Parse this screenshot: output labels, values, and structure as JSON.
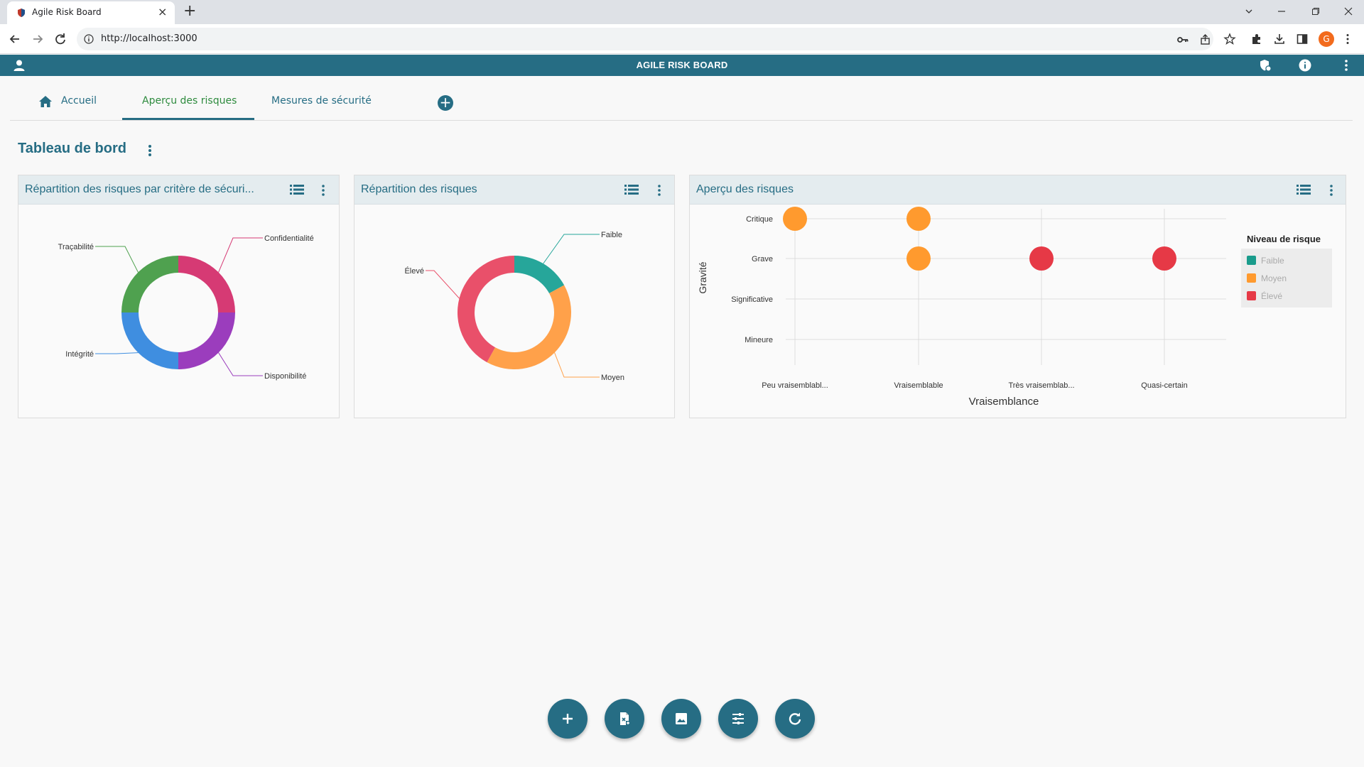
{
  "browser": {
    "tab_title": "Agile Risk Board",
    "url": "http://localhost:3000",
    "profile_initial": "G"
  },
  "app": {
    "title": "AGILE RISK BOARD"
  },
  "nav": {
    "tabs": [
      {
        "label": "Accueil"
      },
      {
        "label": "Aperçu des risques"
      },
      {
        "label": "Mesures de sécurité"
      }
    ]
  },
  "page": {
    "title": "Tableau de bord"
  },
  "cards": [
    {
      "title": "Répartition des risques par critère de sécuri...",
      "chart_data": {
        "type": "pie",
        "categories": [
          "Confidentialité",
          "Disponibilité",
          "Intégrité",
          "Traçabilité"
        ],
        "values": [
          25,
          25,
          25,
          25
        ],
        "colors": [
          "#d63a74",
          "#9b3dbd",
          "#3f8ee0",
          "#4fa14f"
        ]
      }
    },
    {
      "title": "Répartition des risques",
      "chart_data": {
        "type": "pie",
        "categories": [
          "Faible",
          "Moyen",
          "Élevé"
        ],
        "values": [
          17,
          41,
          42
        ],
        "colors": [
          "#26a69a",
          "#ffa14a",
          "#e9506a"
        ]
      }
    },
    {
      "title": "Aperçu des risques",
      "chart_data": {
        "type": "scatter",
        "xlabel": "Vraisemblance",
        "ylabel": "Gravité",
        "x_categories": [
          "Peu vraisemblabl...",
          "Vraisemblable",
          "Très vraisemblab...",
          "Quasi-certain"
        ],
        "y_categories": [
          "Mineure",
          "Significative",
          "Grave",
          "Critique"
        ],
        "legend_title": "Niveau de risque",
        "legend": [
          {
            "name": "Faible",
            "color": "#1a9c8c"
          },
          {
            "name": "Moyen",
            "color": "#ff9a2e"
          },
          {
            "name": "Élevé",
            "color": "#e63946"
          }
        ],
        "points": [
          {
            "x": "Peu vraisemblabl...",
            "y": "Critique",
            "level": "Moyen"
          },
          {
            "x": "Vraisemblable",
            "y": "Critique",
            "level": "Moyen"
          },
          {
            "x": "Vraisemblable",
            "y": "Grave",
            "level": "Moyen"
          },
          {
            "x": "Très vraisemblab...",
            "y": "Grave",
            "level": "Élevé"
          },
          {
            "x": "Quasi-certain",
            "y": "Grave",
            "level": "Élevé"
          }
        ]
      }
    }
  ],
  "colors": {
    "primary": "#266d84",
    "card_header": "#e4ecef"
  },
  "fabs": [
    {
      "icon": "add-icon"
    },
    {
      "icon": "file-export-icon"
    },
    {
      "icon": "image-icon"
    },
    {
      "icon": "tune-icon"
    },
    {
      "icon": "refresh-icon"
    }
  ]
}
